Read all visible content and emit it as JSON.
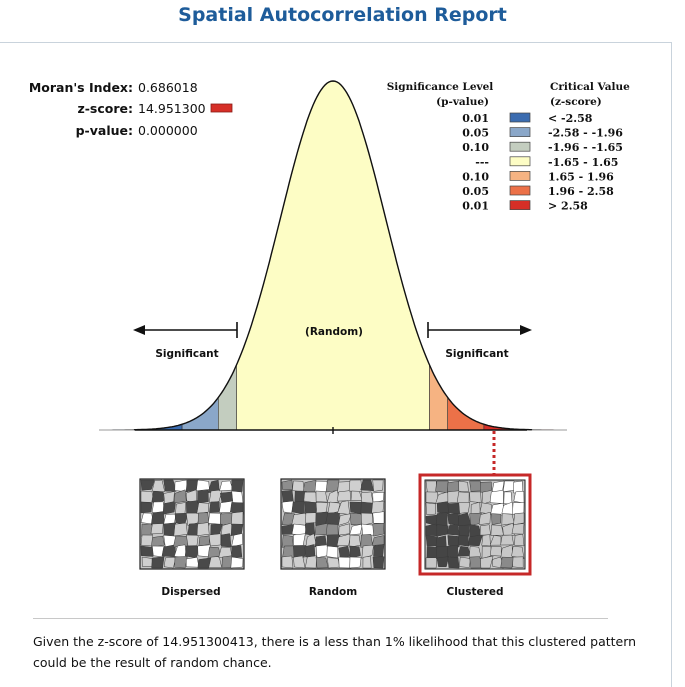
{
  "title": "Spatial Autocorrelation Report",
  "stats": {
    "morans_label": "Moran's Index:",
    "morans_value": "0.686018",
    "z_label": "z-score:",
    "z_value": "14.951300",
    "p_label": "p-value:",
    "p_value": "0.000000"
  },
  "legend": {
    "significance_header_1": "Significance Level",
    "significance_header_2": "(p-value)",
    "critical_header_1": "Critical Value",
    "critical_header_2": "(z-score)",
    "rows": [
      {
        "p": "0.01",
        "z": "< -2.58",
        "color": "#3b6cb0"
      },
      {
        "p": "0.05",
        "z": "-2.58 - -1.96",
        "color": "#8aa7c9"
      },
      {
        "p": "0.10",
        "z": "-1.96 - -1.65",
        "color": "#c3cdbf"
      },
      {
        "p": "---",
        "z": "-1.65 - 1.65",
        "color": "#fdfdc5"
      },
      {
        "p": "0.10",
        "z": "1.65 - 1.96",
        "color": "#f6b382"
      },
      {
        "p": "0.05",
        "z": "1.96 - 2.58",
        "color": "#ec7148"
      },
      {
        "p": "0.01",
        "z": "> 2.58",
        "color": "#d62f27"
      }
    ]
  },
  "curve": {
    "random_label": "(Random)",
    "left_label": "Significant",
    "right_label": "Significant",
    "zones": [
      {
        "from": -4,
        "to": -2.58,
        "color": "#3b6cb0"
      },
      {
        "from": -2.58,
        "to": -1.96,
        "color": "#8aa7c9"
      },
      {
        "from": -1.96,
        "to": -1.65,
        "color": "#c3cdbf"
      },
      {
        "from": -1.65,
        "to": 1.65,
        "color": "#fdfdc5"
      },
      {
        "from": 1.65,
        "to": 1.96,
        "color": "#f6b382"
      },
      {
        "from": 1.96,
        "to": 2.58,
        "color": "#ec7148"
      },
      {
        "from": 2.58,
        "to": 4,
        "color": "#d62f27"
      }
    ],
    "result_zone": "clustered"
  },
  "patterns": [
    {
      "label": "Dispersed",
      "highlighted": false
    },
    {
      "label": "Random",
      "highlighted": false
    },
    {
      "label": "Clustered",
      "highlighted": true
    }
  ],
  "summary": "Given the z-score of 14.951300413, there is a less than 1% likelihood that this clustered pattern could be the result of random chance.",
  "colors": {
    "title": "#1e5c9a",
    "highlight": "#c62828",
    "result_marker": "#c62828"
  }
}
